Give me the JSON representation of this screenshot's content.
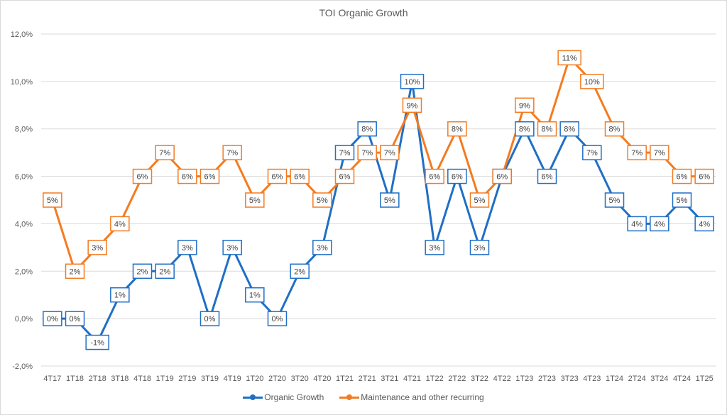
{
  "chart_data": {
    "type": "line",
    "title": "TOI Organic Growth",
    "xlabel": "",
    "ylabel": "",
    "ylim": [
      -0.02,
      0.12
    ],
    "yticks": [
      -0.02,
      0.0,
      0.02,
      0.04,
      0.06,
      0.08,
      0.1,
      0.12
    ],
    "ytick_labels": [
      "-2,0%",
      "0,0%",
      "2,0%",
      "4,0%",
      "6,0%",
      "8,0%",
      "10,0%",
      "12,0%"
    ],
    "grid": true,
    "legend_position": "bottom",
    "categories": [
      "4T17",
      "1T18",
      "2T18",
      "3T18",
      "4T18",
      "1T19",
      "2T19",
      "3T19",
      "4T19",
      "1T20",
      "2T20",
      "3T20",
      "4T20",
      "1T21",
      "2T21",
      "3T21",
      "4T21",
      "1T22",
      "2T22",
      "3T22",
      "4T22",
      "1T23",
      "2T23",
      "3T23",
      "4T23",
      "1T24",
      "2T24",
      "3T24",
      "4T24",
      "1T25"
    ],
    "series": [
      {
        "name": "Organic Growth",
        "color": "#1f6fc5",
        "values": [
          0.0,
          0.0,
          -0.01,
          0.01,
          0.02,
          0.02,
          0.03,
          0.0,
          0.03,
          0.01,
          0.0,
          0.02,
          0.03,
          0.07,
          0.08,
          0.05,
          0.1,
          0.03,
          0.06,
          0.03,
          0.06,
          0.08,
          0.06,
          0.08,
          0.07,
          0.05,
          0.04,
          0.04,
          0.05,
          0.04
        ],
        "labels": [
          "0%",
          "0%",
          "-1%",
          "1%",
          "2%",
          "2%",
          "3%",
          "0%",
          "3%",
          "1%",
          "0%",
          "2%",
          "3%",
          "7%",
          "8%",
          "5%",
          "10%",
          "3%",
          "6%",
          "3%",
          "6%",
          "8%",
          "6%",
          "8%",
          "7%",
          "5%",
          "4%",
          "4%",
          "5%",
          "4%"
        ]
      },
      {
        "name": "Maintenance and other recurring",
        "color": "#f47b20",
        "values": [
          0.05,
          0.02,
          0.03,
          0.04,
          0.06,
          0.07,
          0.06,
          0.06,
          0.07,
          0.05,
          0.06,
          0.06,
          0.05,
          0.06,
          0.07,
          0.07,
          0.09,
          0.06,
          0.08,
          0.05,
          0.06,
          0.09,
          0.08,
          0.11,
          0.1,
          0.08,
          0.07,
          0.07,
          0.06,
          0.06
        ],
        "labels": [
          "5%",
          "2%",
          "3%",
          "4%",
          "6%",
          "7%",
          "6%",
          "6%",
          "7%",
          "5%",
          "6%",
          "6%",
          "5%",
          "6%",
          "7%",
          "7%",
          "9%",
          "6%",
          "8%",
          "5%",
          "6%",
          "9%",
          "8%",
          "11%",
          "10%",
          "8%",
          "7%",
          "7%",
          "6%",
          "6%"
        ]
      }
    ]
  }
}
